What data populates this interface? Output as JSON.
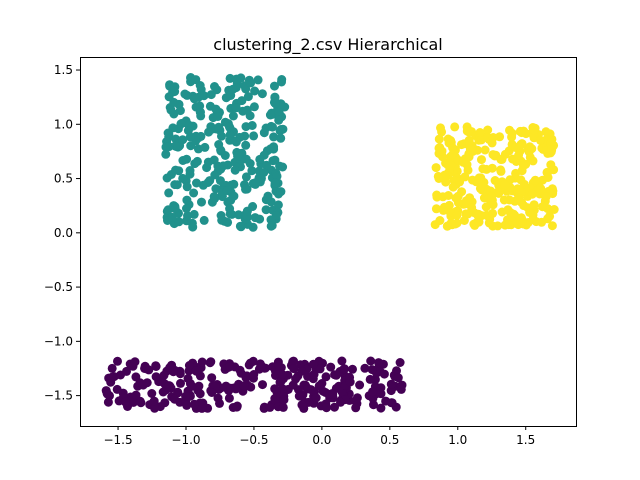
{
  "chart_data": {
    "type": "scatter",
    "title": "clustering_2.csv Hierarchical",
    "xlabel": "",
    "ylabel": "",
    "xlim": [
      -1.78,
      1.87
    ],
    "ylim": [
      -1.78,
      1.62
    ],
    "xticks": [
      -1.5,
      -1.0,
      -0.5,
      0.0,
      0.5,
      1.0,
      1.5
    ],
    "xtick_labels": [
      "−1.5",
      "−1.0",
      "−0.5",
      "0.0",
      "0.5",
      "1.0",
      "1.5"
    ],
    "yticks": [
      -1.5,
      -1.0,
      -0.5,
      0.0,
      0.5,
      1.0,
      1.5
    ],
    "ytick_labels": [
      "−1.5",
      "−1.0",
      "−0.5",
      "0.0",
      "0.5",
      "1.0",
      "1.5"
    ],
    "grid": false,
    "legend": "none",
    "clusters": [
      {
        "color": "#440154",
        "x_range": [
          -1.6,
          0.6
        ],
        "y_range": [
          -1.62,
          -1.18
        ],
        "point_count": 300
      },
      {
        "color": "#21918c",
        "x_range": [
          -1.15,
          -0.27
        ],
        "y_range": [
          0.05,
          1.47
        ],
        "point_count": 300
      },
      {
        "color": "#fde725",
        "x_range": [
          0.83,
          1.71
        ],
        "y_range": [
          0.06,
          0.98
        ],
        "point_count": 300
      }
    ]
  }
}
